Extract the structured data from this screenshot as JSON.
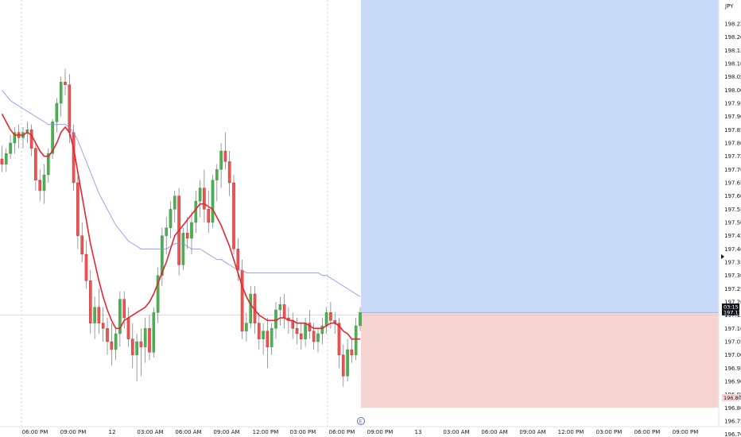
{
  "currency": "JPY",
  "colors": {
    "up": "#26a69a",
    "up_fill": "#4caf50",
    "down": "#ef5350",
    "ma_fast": "#e8242e",
    "ma_slow": "#7b93f0",
    "target_zone": "#c9daf8",
    "stop_zone": "#f6d4d2",
    "price_box": "#131722",
    "stop_box": "#f6d4d2",
    "grid": "#e0e3eb"
  },
  "price_label": {
    "top": "03:15",
    "bottom": "197.132"
  },
  "stop_label": "196.800",
  "event_marker": "E",
  "chart_data": {
    "type": "candlestick",
    "ylim": [
      196.69,
      198.34
    ],
    "y_ticks": [
      "198.250",
      "198.200",
      "198.150",
      "198.100",
      "198.050",
      "198.000",
      "197.950",
      "197.900",
      "197.850",
      "197.800",
      "197.750",
      "197.700",
      "197.650",
      "197.600",
      "197.550",
      "197.500",
      "197.450",
      "197.400",
      "197.350",
      "197.300",
      "197.250",
      "197.200",
      "197.150",
      "197.100",
      "197.050",
      "197.000",
      "196.950",
      "196.900",
      "196.850",
      "196.800",
      "196.750",
      "196.700"
    ],
    "x_ticks": [
      "06:00 PM",
      "09:00 PM",
      "12",
      "03:00 AM",
      "06:00 AM",
      "09:00 AM",
      "12:00 PM",
      "03:00 PM",
      "06:00 PM",
      "09:00 PM",
      "13",
      "03:00 AM",
      "06:00 AM",
      "09:00 AM",
      "12:00 PM",
      "03:00 PM",
      "06:00 PM",
      "09:00 PM"
    ],
    "candles": [
      [
        197.74,
        197.79,
        197.69,
        197.72
      ],
      [
        197.72,
        197.78,
        197.69,
        197.76
      ],
      [
        197.76,
        197.83,
        197.74,
        197.8
      ],
      [
        197.8,
        197.86,
        197.76,
        197.84
      ],
      [
        197.84,
        197.87,
        197.78,
        197.82
      ],
      [
        197.82,
        197.86,
        197.78,
        197.84
      ],
      [
        197.84,
        197.88,
        197.8,
        197.85
      ],
      [
        197.85,
        197.87,
        197.75,
        197.78
      ],
      [
        197.78,
        197.8,
        197.62,
        197.66
      ],
      [
        197.66,
        197.7,
        197.58,
        197.62
      ],
      [
        197.62,
        197.72,
        197.57,
        197.68
      ],
      [
        197.68,
        197.78,
        197.65,
        197.76
      ],
      [
        197.76,
        197.89,
        197.74,
        197.88
      ],
      [
        197.88,
        197.97,
        197.84,
        197.95
      ],
      [
        197.95,
        198.05,
        197.9,
        198.03
      ],
      [
        198.03,
        198.08,
        197.98,
        198.02
      ],
      [
        198.02,
        198.06,
        197.8,
        197.84
      ],
      [
        197.84,
        197.87,
        197.62,
        197.65
      ],
      [
        197.65,
        197.68,
        197.4,
        197.45
      ],
      [
        197.45,
        197.5,
        197.35,
        197.38
      ],
      [
        197.38,
        197.43,
        197.25,
        197.28
      ],
      [
        197.28,
        197.32,
        197.08,
        197.12
      ],
      [
        197.12,
        197.22,
        197.06,
        197.18
      ],
      [
        197.18,
        197.25,
        197.08,
        197.12
      ],
      [
        197.12,
        197.18,
        197.05,
        197.1
      ],
      [
        197.1,
        197.14,
        197.0,
        197.05
      ],
      [
        197.05,
        197.12,
        196.96,
        197.02
      ],
      [
        197.02,
        197.1,
        196.98,
        197.08
      ],
      [
        197.08,
        197.24,
        197.03,
        197.21
      ],
      [
        197.21,
        197.24,
        197.1,
        197.14
      ],
      [
        197.14,
        197.18,
        197.03,
        197.06
      ],
      [
        197.06,
        197.12,
        196.95,
        197.0
      ],
      [
        197.0,
        197.08,
        196.9,
        197.05
      ],
      [
        197.05,
        197.1,
        196.92,
        197.03
      ],
      [
        197.03,
        197.14,
        196.97,
        197.1
      ],
      [
        197.1,
        197.15,
        196.98,
        197.01
      ],
      [
        197.01,
        197.18,
        196.99,
        197.16
      ],
      [
        197.16,
        197.33,
        197.12,
        197.3
      ],
      [
        197.3,
        197.48,
        197.26,
        197.45
      ],
      [
        197.45,
        197.52,
        197.38,
        197.48
      ],
      [
        197.48,
        197.58,
        197.44,
        197.55
      ],
      [
        197.55,
        197.62,
        197.5,
        197.6
      ],
      [
        197.6,
        197.63,
        197.3,
        197.34
      ],
      [
        197.34,
        197.48,
        197.32,
        197.46
      ],
      [
        197.46,
        197.52,
        197.4,
        197.44
      ],
      [
        197.44,
        197.54,
        197.38,
        197.5
      ],
      [
        197.5,
        197.62,
        197.46,
        197.58
      ],
      [
        197.58,
        197.66,
        197.52,
        197.63
      ],
      [
        197.63,
        197.7,
        197.5,
        197.55
      ],
      [
        197.55,
        197.62,
        197.46,
        197.5
      ],
      [
        197.5,
        197.68,
        197.48,
        197.66
      ],
      [
        197.66,
        197.72,
        197.58,
        197.7
      ],
      [
        197.7,
        197.8,
        197.63,
        197.77
      ],
      [
        197.77,
        197.84,
        197.7,
        197.73
      ],
      [
        197.73,
        197.77,
        197.6,
        197.65
      ],
      [
        197.65,
        197.68,
        197.38,
        197.4
      ],
      [
        197.4,
        197.44,
        197.28,
        197.32
      ],
      [
        197.32,
        197.36,
        197.06,
        197.09
      ],
      [
        197.09,
        197.16,
        197.05,
        197.12
      ],
      [
        197.12,
        197.26,
        197.1,
        197.23
      ],
      [
        197.23,
        197.26,
        197.08,
        197.12
      ],
      [
        197.12,
        197.16,
        197.02,
        197.06
      ],
      [
        197.06,
        197.12,
        197.0,
        197.09
      ],
      [
        197.09,
        197.14,
        196.95,
        197.03
      ],
      [
        197.03,
        197.12,
        197.0,
        197.1
      ],
      [
        197.1,
        197.2,
        197.06,
        197.17
      ],
      [
        197.17,
        197.22,
        197.11,
        197.19
      ],
      [
        197.19,
        197.23,
        197.1,
        197.14
      ],
      [
        197.14,
        197.18,
        197.08,
        197.13
      ],
      [
        197.13,
        197.16,
        197.06,
        197.1
      ],
      [
        197.1,
        197.14,
        197.04,
        197.08
      ],
      [
        197.08,
        197.12,
        197.02,
        197.06
      ],
      [
        197.06,
        197.14,
        197.03,
        197.12
      ],
      [
        197.12,
        197.17,
        197.06,
        197.09
      ],
      [
        197.09,
        197.12,
        197.02,
        197.05
      ],
      [
        197.05,
        197.1,
        197.01,
        197.08
      ],
      [
        197.08,
        197.14,
        197.04,
        197.11
      ],
      [
        197.11,
        197.18,
        197.08,
        197.16
      ],
      [
        197.16,
        197.2,
        197.1,
        197.13
      ],
      [
        197.13,
        197.16,
        197.08,
        197.12
      ],
      [
        197.12,
        197.14,
        196.95,
        197.0
      ],
      [
        197.0,
        197.04,
        196.88,
        196.92
      ],
      [
        196.92,
        197.06,
        196.9,
        197.02
      ],
      [
        197.02,
        197.06,
        196.97,
        197.0
      ],
      [
        197.0,
        197.14,
        196.98,
        197.11
      ],
      [
        197.11,
        197.18,
        197.09,
        197.16
      ]
    ],
    "series": [
      {
        "values": [
          197.91,
          197.88,
          197.85,
          197.83,
          197.83,
          197.83,
          197.84,
          197.83,
          197.8,
          197.77,
          197.75,
          197.75,
          197.77,
          197.8,
          197.84,
          197.86,
          197.84,
          197.78,
          197.69,
          197.6,
          197.51,
          197.42,
          197.35,
          197.28,
          197.22,
          197.17,
          197.13,
          197.1,
          197.1,
          197.13,
          197.14,
          197.15,
          197.16,
          197.17,
          197.18,
          197.2,
          197.23,
          197.27,
          197.31,
          197.35,
          197.4,
          197.45,
          197.47,
          197.49,
          197.51,
          197.53,
          197.55,
          197.57,
          197.57,
          197.56,
          197.55,
          197.52,
          197.49,
          197.45,
          197.41,
          197.36,
          197.31,
          197.26,
          197.22,
          197.19,
          197.17,
          197.15,
          197.14,
          197.13,
          197.13,
          197.13,
          197.14,
          197.14,
          197.13,
          197.13,
          197.12,
          197.12,
          197.12,
          197.11,
          197.1,
          197.1,
          197.1,
          197.11,
          197.12,
          197.12,
          197.11,
          197.09,
          197.08,
          197.06,
          197.06,
          197.06
        ]
      },
      {
        "values": [
          198.0,
          197.98,
          197.96,
          197.95,
          197.94,
          197.93,
          197.92,
          197.91,
          197.9,
          197.89,
          197.88,
          197.87,
          197.87,
          197.87,
          197.87,
          197.87,
          197.86,
          197.84,
          197.81,
          197.77,
          197.73,
          197.69,
          197.65,
          197.61,
          197.58,
          197.55,
          197.52,
          197.49,
          197.47,
          197.45,
          197.43,
          197.42,
          197.41,
          197.4,
          197.4,
          197.4,
          197.4,
          197.4,
          197.4,
          197.4,
          197.41,
          197.42,
          197.42,
          197.42,
          197.41,
          197.4,
          197.4,
          197.4,
          197.39,
          197.38,
          197.37,
          197.36,
          197.36,
          197.35,
          197.34,
          197.33,
          197.32,
          197.32,
          197.31,
          197.31,
          197.31,
          197.31,
          197.31,
          197.31,
          197.31,
          197.31,
          197.31,
          197.31,
          197.31,
          197.31,
          197.31,
          197.31,
          197.31,
          197.31,
          197.31,
          197.31,
          197.3,
          197.3,
          197.29,
          197.28,
          197.27,
          197.26,
          197.25,
          197.24,
          197.23,
          197.22
        ]
      }
    ],
    "position": {
      "entry": 197.16,
      "target": 198.34,
      "stop": 196.8,
      "current": 197.132
    }
  }
}
